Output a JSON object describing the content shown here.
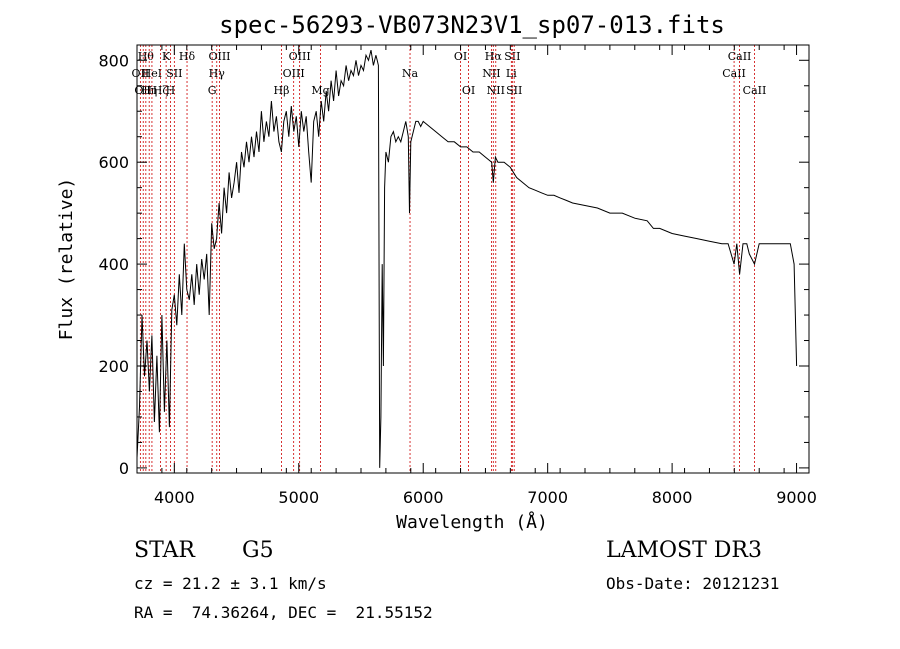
{
  "chart_data": {
    "type": "line",
    "title": "spec-56293-VB073N23V1_sp07-013.fits",
    "xlabel": "Wavelength (Å)",
    "ylabel": "Flux (relative)",
    "xlim": [
      3700,
      9100
    ],
    "ylim": [
      -10,
      830
    ],
    "x_ticks": [
      4000,
      5000,
      6000,
      7000,
      8000,
      9000
    ],
    "y_ticks": [
      0,
      200,
      400,
      600,
      800
    ],
    "grid": false,
    "line_color": "#000000",
    "marker_color": "#cc0000",
    "series": [
      {
        "name": "flux",
        "x": [
          3700,
          3720,
          3740,
          3760,
          3780,
          3800,
          3820,
          3840,
          3860,
          3880,
          3900,
          3920,
          3940,
          3960,
          3980,
          4000,
          4020,
          4040,
          4060,
          4080,
          4100,
          4120,
          4140,
          4160,
          4180,
          4200,
          4220,
          4240,
          4260,
          4280,
          4300,
          4320,
          4340,
          4360,
          4380,
          4400,
          4420,
          4440,
          4460,
          4480,
          4500,
          4520,
          4540,
          4560,
          4580,
          4600,
          4620,
          4640,
          4660,
          4680,
          4700,
          4720,
          4740,
          4760,
          4780,
          4800,
          4820,
          4840,
          4860,
          4880,
          4900,
          4920,
          4940,
          4960,
          4980,
          5000,
          5020,
          5040,
          5060,
          5080,
          5100,
          5120,
          5140,
          5160,
          5180,
          5200,
          5220,
          5240,
          5260,
          5280,
          5300,
          5320,
          5340,
          5360,
          5380,
          5400,
          5420,
          5440,
          5460,
          5480,
          5500,
          5520,
          5540,
          5560,
          5580,
          5600,
          5620,
          5630,
          5640,
          5650,
          5660,
          5670,
          5680,
          5690,
          5700,
          5720,
          5740,
          5760,
          5780,
          5800,
          5820,
          5840,
          5860,
          5880,
          5890,
          5900,
          5920,
          5940,
          5960,
          5980,
          6000,
          6050,
          6100,
          6150,
          6200,
          6250,
          6300,
          6350,
          6400,
          6450,
          6500,
          6550,
          6563,
          6580,
          6600,
          6650,
          6700,
          6750,
          6800,
          6850,
          6900,
          6950,
          7000,
          7050,
          7100,
          7150,
          7200,
          7300,
          7400,
          7500,
          7600,
          7700,
          7800,
          7850,
          7900,
          8000,
          8100,
          8200,
          8300,
          8400,
          8450,
          8498,
          8520,
          8542,
          8570,
          8600,
          8620,
          8662,
          8700,
          8750,
          8800,
          8850,
          8900,
          8950,
          8980,
          9000
        ],
        "y": [
          20,
          120,
          300,
          180,
          250,
          150,
          260,
          90,
          220,
          70,
          300,
          110,
          250,
          80,
          310,
          340,
          280,
          380,
          300,
          440,
          350,
          330,
          380,
          320,
          400,
          340,
          410,
          370,
          420,
          300,
          480,
          430,
          450,
          520,
          460,
          550,
          500,
          580,
          530,
          560,
          600,
          540,
          620,
          590,
          640,
          600,
          650,
          610,
          660,
          620,
          700,
          640,
          680,
          650,
          720,
          660,
          690,
          640,
          620,
          680,
          700,
          650,
          710,
          660,
          690,
          630,
          700,
          660,
          690,
          620,
          560,
          680,
          700,
          650,
          720,
          680,
          740,
          700,
          760,
          720,
          780,
          730,
          760,
          750,
          790,
          760,
          780,
          770,
          800,
          770,
          790,
          780,
          810,
          800,
          820,
          790,
          810,
          800,
          790,
          0,
          100,
          400,
          200,
          550,
          620,
          600,
          650,
          660,
          640,
          650,
          640,
          660,
          680,
          650,
          500,
          640,
          660,
          680,
          680,
          670,
          680,
          670,
          660,
          650,
          640,
          640,
          630,
          630,
          620,
          620,
          610,
          600,
          560,
          610,
          600,
          600,
          590,
          570,
          560,
          550,
          545,
          540,
          535,
          535,
          530,
          525,
          520,
          515,
          510,
          500,
          500,
          490,
          485,
          470,
          470,
          460,
          455,
          450,
          445,
          440,
          440,
          400,
          440,
          380,
          440,
          440,
          420,
          400,
          440,
          440,
          440,
          440,
          440,
          440,
          400,
          200
        ]
      }
    ],
    "line_markers": [
      {
        "x": 3727,
        "label": "OII",
        "row": 1
      },
      {
        "x": 3750,
        "label": "OII",
        "row": 2
      },
      {
        "x": 3771,
        "label": "Hθ",
        "row": 0
      },
      {
        "x": 3798,
        "label": "Hη",
        "row": 2
      },
      {
        "x": 3820,
        "label": "HeI",
        "row": 1
      },
      {
        "x": 3889,
        "label": "Hζ",
        "row": 2
      },
      {
        "x": 3934,
        "label": "K",
        "row": 0
      },
      {
        "x": 3969,
        "label": "H",
        "row": 2
      },
      {
        "x": 4000,
        "label": "SII",
        "row": 1
      },
      {
        "x": 4102,
        "label": "Hδ",
        "row": 0
      },
      {
        "x": 4304,
        "label": "G",
        "row": 2
      },
      {
        "x": 4341,
        "label": "Hγ",
        "row": 1
      },
      {
        "x": 4363,
        "label": "OIII",
        "row": 0
      },
      {
        "x": 4861,
        "label": "Hβ",
        "row": 2
      },
      {
        "x": 4959,
        "label": "OIII",
        "row": 1
      },
      {
        "x": 5007,
        "label": "OIII",
        "row": 0
      },
      {
        "x": 5175,
        "label": "Mg",
        "row": 2
      },
      {
        "x": 5894,
        "label": "Na",
        "row": 1
      },
      {
        "x": 6300,
        "label": "OI",
        "row": 0
      },
      {
        "x": 6364,
        "label": "OI",
        "row": 2
      },
      {
        "x": 6548,
        "label": "NII",
        "row": 1
      },
      {
        "x": 6563,
        "label": "Hα",
        "row": 0
      },
      {
        "x": 6583,
        "label": "NII",
        "row": 2
      },
      {
        "x": 6708,
        "label": "Li",
        "row": 1
      },
      {
        "x": 6716,
        "label": "SII",
        "row": 0
      },
      {
        "x": 6731,
        "label": "SII",
        "row": 2
      },
      {
        "x": 8498,
        "label": "CaII",
        "row": 1
      },
      {
        "x": 8542,
        "label": "CaII",
        "row": 0
      },
      {
        "x": 8662,
        "label": "CaII",
        "row": 2
      }
    ]
  },
  "info": {
    "class_label": "STAR",
    "subclass": "G5",
    "survey": "LAMOST DR3",
    "redshift": "cz = 21.2 ± 3.1 km/s",
    "obs_date": "Obs-Date: 20121231",
    "coords": "RA =  74.36264, DEC =  21.55152"
  }
}
